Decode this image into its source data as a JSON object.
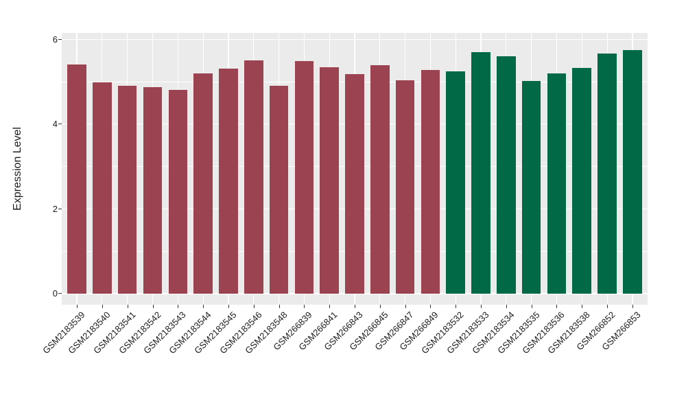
{
  "chart_data": {
    "type": "bar",
    "title": "",
    "xlabel": "",
    "ylabel": "Expression Level",
    "categories": [
      "GSM2183539",
      "GSM2183540",
      "GSM2183541",
      "GSM2183542",
      "GSM2183543",
      "GSM2183544",
      "GSM2183545",
      "GSM2183546",
      "GSM2183548",
      "GSM266839",
      "GSM266841",
      "GSM266843",
      "GSM266845",
      "GSM266847",
      "GSM266849",
      "GSM2183532",
      "GSM2183533",
      "GSM2183534",
      "GSM2183535",
      "GSM2183536",
      "GSM2183538",
      "GSM266852",
      "GSM266853"
    ],
    "values": [
      5.4,
      4.98,
      4.91,
      4.87,
      4.8,
      5.2,
      5.31,
      5.5,
      4.91,
      5.48,
      5.34,
      5.18,
      5.39,
      5.04,
      5.28,
      5.25,
      5.7,
      5.6,
      5.01,
      5.2,
      5.33,
      5.67,
      5.74
    ],
    "colors": [
      "#9C4351",
      "#9C4351",
      "#9C4351",
      "#9C4351",
      "#9C4351",
      "#9C4351",
      "#9C4351",
      "#9C4351",
      "#9C4351",
      "#9C4351",
      "#9C4351",
      "#9C4351",
      "#9C4351",
      "#9C4351",
      "#9C4351",
      "#016946",
      "#016946",
      "#016946",
      "#016946",
      "#016946",
      "#016946",
      "#016946",
      "#016946"
    ],
    "group_colors": {
      "left_group": "#9C4351",
      "right_group": "#016946"
    },
    "ylim": [
      -0.26,
      6.15
    ],
    "yticks_major": [
      0,
      2,
      4,
      6
    ],
    "yticks_minor": [
      1,
      3,
      5
    ],
    "grid": true,
    "legend": "none",
    "panel_bg": "#EBEBEB",
    "grid_color": "#FFFFFF",
    "axis_text_color": "#1A1A1A",
    "tick_color": "#333333"
  }
}
